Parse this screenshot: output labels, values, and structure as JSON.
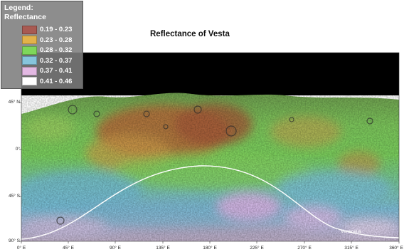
{
  "title": "Reflectance of Vesta",
  "legend": {
    "heading": "Legend:",
    "subheading": "Reflectance",
    "items": [
      {
        "label": "0.19 - 0.23",
        "color": "#a85a52"
      },
      {
        "label": "0.23 - 0.28",
        "color": "#e2b24a"
      },
      {
        "label": "0.28 - 0.32",
        "color": "#7ed75a"
      },
      {
        "label": "0.32 - 0.37",
        "color": "#86c4dc"
      },
      {
        "label": "0.37 - 0.41",
        "color": "#e2b8e2"
      },
      {
        "label": "0.41 - 0.46",
        "color": "#ffffff"
      }
    ]
  },
  "axes": {
    "latitude_labels": [
      "45° N",
      "0°",
      "45° S",
      "90° S"
    ],
    "longitude_labels": [
      "0° E",
      "45° E",
      "90° E",
      "135° E",
      "180° E",
      "225° E",
      "270° E",
      "315° E",
      "360° E"
    ]
  },
  "annotations": {
    "venenelia": "Venenelia"
  }
}
